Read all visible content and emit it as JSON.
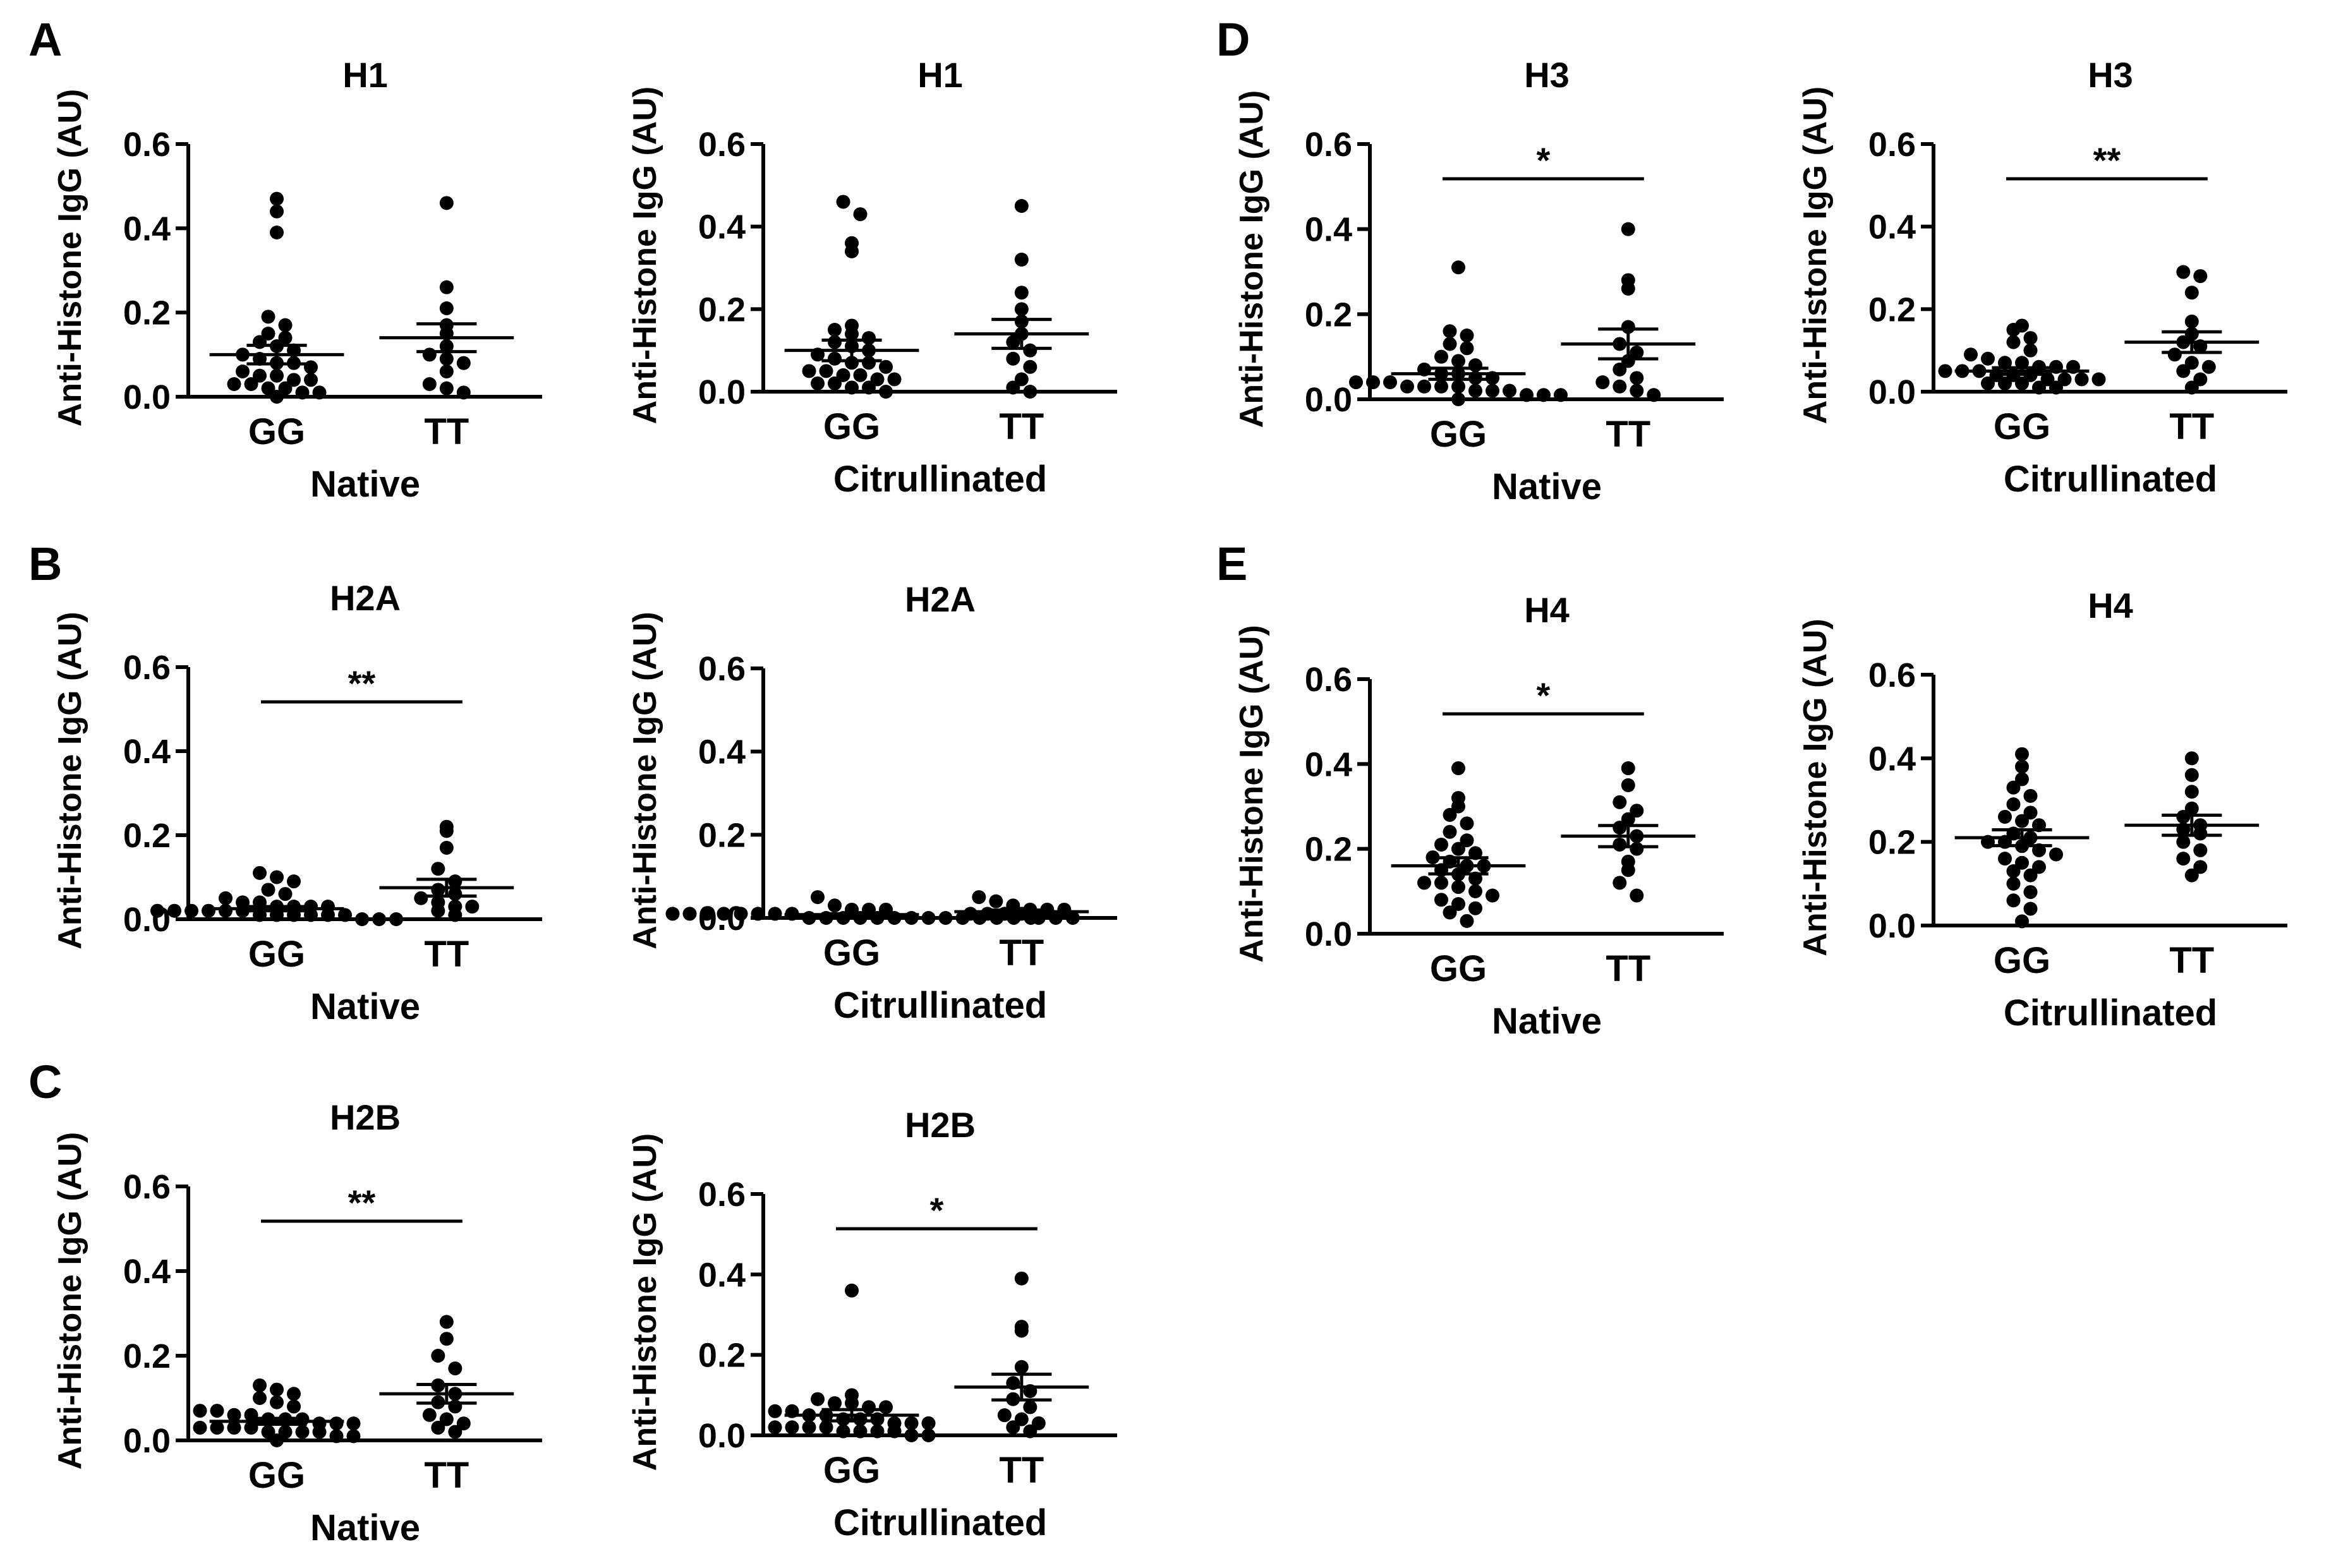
{
  "figure": {
    "panel_letters": [
      "A",
      "B",
      "C",
      "D",
      "E"
    ]
  },
  "chart_data": [
    {
      "type": "scatter",
      "panel": "A",
      "title": "H1",
      "xlabel": "Native",
      "ylabel": "Anti-Histone IgG (AU)",
      "categories": [
        "GG",
        "TT"
      ],
      "ylim": [
        0,
        0.6
      ],
      "yticks": [
        "0.0",
        "0.2",
        "0.4",
        "0.6"
      ],
      "significance": "",
      "groups": [
        {
          "name": "GG",
          "mean": 0.1,
          "sem": 0.022,
          "values": [
            0.47,
            0.44,
            0.39,
            0.19,
            0.17,
            0.15,
            0.14,
            0.13,
            0.12,
            0.11,
            0.1,
            0.09,
            0.08,
            0.08,
            0.07,
            0.06,
            0.05,
            0.05,
            0.04,
            0.04,
            0.03,
            0.03,
            0.02,
            0.02,
            0.01,
            0.01,
            0.0
          ]
        },
        {
          "name": "TT",
          "mean": 0.14,
          "sem": 0.033,
          "values": [
            0.46,
            0.26,
            0.21,
            0.17,
            0.15,
            0.12,
            0.1,
            0.09,
            0.08,
            0.06,
            0.03,
            0.02,
            0.01
          ]
        }
      ]
    },
    {
      "type": "scatter",
      "panel": "A",
      "title": "H1",
      "xlabel": "Citrullinated",
      "ylabel": "Anti-Histone IgG (AU)",
      "categories": [
        "GG",
        "TT"
      ],
      "ylim": [
        0,
        0.6
      ],
      "yticks": [
        "0.0",
        "0.2",
        "0.4",
        "0.6"
      ],
      "significance": "",
      "groups": [
        {
          "name": "GG",
          "mean": 0.1,
          "sem": 0.025,
          "values": [
            0.46,
            0.43,
            0.34,
            0.36,
            0.16,
            0.15,
            0.14,
            0.13,
            0.12,
            0.11,
            0.1,
            0.09,
            0.08,
            0.07,
            0.07,
            0.06,
            0.05,
            0.05,
            0.04,
            0.04,
            0.03,
            0.03,
            0.02,
            0.02,
            0.01,
            0.01,
            0.0
          ]
        },
        {
          "name": "TT",
          "mean": 0.14,
          "sem": 0.035,
          "values": [
            0.45,
            0.32,
            0.24,
            0.2,
            0.17,
            0.14,
            0.12,
            0.1,
            0.08,
            0.06,
            0.03,
            0.01,
            0.0
          ]
        }
      ]
    },
    {
      "type": "scatter",
      "panel": "B",
      "title": "H2A",
      "xlabel": "Native",
      "ylabel": "Anti-Histone IgG (AU)",
      "categories": [
        "GG",
        "TT"
      ],
      "ylim": [
        0,
        0.6
      ],
      "yticks": [
        "0.0",
        "0.2",
        "0.4",
        "0.6"
      ],
      "significance": "**",
      "groups": [
        {
          "name": "GG",
          "mean": 0.025,
          "sem": 0.005,
          "values": [
            0.11,
            0.1,
            0.09,
            0.07,
            0.06,
            0.05,
            0.04,
            0.04,
            0.03,
            0.03,
            0.03,
            0.03,
            0.02,
            0.02,
            0.02,
            0.02,
            0.02,
            0.02,
            0.01,
            0.01,
            0.01,
            0.01,
            0.01,
            0.01,
            0.0,
            0.0,
            0.0
          ]
        },
        {
          "name": "TT",
          "mean": 0.075,
          "sem": 0.02,
          "values": [
            0.22,
            0.21,
            0.17,
            0.12,
            0.09,
            0.07,
            0.06,
            0.05,
            0.04,
            0.03,
            0.03,
            0.02,
            0.01
          ]
        }
      ]
    },
    {
      "type": "scatter",
      "panel": "B",
      "title": "H2A",
      "xlabel": "Citrullinated",
      "ylabel": "Anti-Histone IgG (AU)",
      "categories": [
        "GG",
        "TT"
      ],
      "ylim": [
        0,
        0.6
      ],
      "yticks": [
        "0.0",
        "0.2",
        "0.4",
        "0.6"
      ],
      "significance": "",
      "groups": [
        {
          "name": "GG",
          "mean": 0.008,
          "sem": 0.002,
          "values": [
            0.05,
            0.03,
            0.02,
            0.02,
            0.02,
            0.01,
            0.01,
            0.01,
            0.01,
            0.01,
            0.01,
            0.01,
            0.01,
            0.0,
            0.0,
            0.0,
            0.0,
            0.0,
            0.0,
            0.0,
            0.0,
            0.0,
            0.0,
            0.0,
            0.0,
            0.0,
            0.0
          ]
        },
        {
          "name": "TT",
          "mean": 0.015,
          "sem": 0.004,
          "values": [
            0.05,
            0.04,
            0.03,
            0.02,
            0.02,
            0.02,
            0.01,
            0.01,
            0.01,
            0.01,
            0.0,
            0.0,
            0.0
          ]
        }
      ]
    },
    {
      "type": "scatter",
      "panel": "C",
      "title": "H2B",
      "xlabel": "Native",
      "ylabel": "Anti-Histone IgG (AU)",
      "categories": [
        "GG",
        "TT"
      ],
      "ylim": [
        0,
        0.6
      ],
      "yticks": [
        "0.0",
        "0.2",
        "0.4",
        "0.6"
      ],
      "significance": "**",
      "groups": [
        {
          "name": "GG",
          "mean": 0.045,
          "sem": 0.007,
          "values": [
            0.13,
            0.12,
            0.11,
            0.1,
            0.09,
            0.08,
            0.07,
            0.07,
            0.06,
            0.06,
            0.05,
            0.05,
            0.05,
            0.04,
            0.04,
            0.04,
            0.03,
            0.03,
            0.03,
            0.03,
            0.02,
            0.02,
            0.02,
            0.02,
            0.01,
            0.01,
            0.0
          ]
        },
        {
          "name": "TT",
          "mean": 0.11,
          "sem": 0.022,
          "values": [
            0.28,
            0.24,
            0.2,
            0.17,
            0.13,
            0.11,
            0.09,
            0.08,
            0.06,
            0.05,
            0.04,
            0.03,
            0.02
          ]
        }
      ]
    },
    {
      "type": "scatter",
      "panel": "C",
      "title": "H2B",
      "xlabel": "Citrullinated",
      "ylabel": "Anti-Histone IgG (AU)",
      "categories": [
        "GG",
        "TT"
      ],
      "ylim": [
        0,
        0.6
      ],
      "yticks": [
        "0.0",
        "0.2",
        "0.4",
        "0.6"
      ],
      "significance": "*",
      "groups": [
        {
          "name": "GG",
          "mean": 0.05,
          "sem": 0.014,
          "values": [
            0.36,
            0.1,
            0.09,
            0.08,
            0.08,
            0.07,
            0.07,
            0.06,
            0.06,
            0.05,
            0.05,
            0.04,
            0.04,
            0.04,
            0.03,
            0.03,
            0.03,
            0.02,
            0.02,
            0.02,
            0.02,
            0.01,
            0.01,
            0.01,
            0.01,
            0.0,
            0.0
          ]
        },
        {
          "name": "TT",
          "mean": 0.12,
          "sem": 0.032,
          "values": [
            0.39,
            0.27,
            0.26,
            0.17,
            0.13,
            0.11,
            0.09,
            0.07,
            0.05,
            0.04,
            0.03,
            0.02,
            0.01
          ]
        }
      ]
    },
    {
      "type": "scatter",
      "panel": "D",
      "title": "H3",
      "xlabel": "Native",
      "ylabel": "Anti-Histone IgG (AU)",
      "categories": [
        "GG",
        "TT"
      ],
      "ylim": [
        0,
        0.6
      ],
      "yticks": [
        "0.0",
        "0.2",
        "0.4",
        "0.6"
      ],
      "significance": "*",
      "groups": [
        {
          "name": "GG",
          "mean": 0.06,
          "sem": 0.013,
          "values": [
            0.31,
            0.16,
            0.15,
            0.13,
            0.12,
            0.1,
            0.09,
            0.08,
            0.07,
            0.06,
            0.06,
            0.05,
            0.05,
            0.04,
            0.04,
            0.04,
            0.03,
            0.03,
            0.03,
            0.03,
            0.02,
            0.02,
            0.02,
            0.01,
            0.01,
            0.01,
            0.0
          ]
        },
        {
          "name": "TT",
          "mean": 0.13,
          "sem": 0.035,
          "values": [
            0.4,
            0.28,
            0.26,
            0.17,
            0.13,
            0.11,
            0.09,
            0.07,
            0.05,
            0.04,
            0.03,
            0.02,
            0.01
          ]
        }
      ]
    },
    {
      "type": "scatter",
      "panel": "D",
      "title": "H3",
      "xlabel": "Citrullinated",
      "ylabel": "Anti-Histone IgG (AU)",
      "categories": [
        "GG",
        "TT"
      ],
      "ylim": [
        0,
        0.6
      ],
      "yticks": [
        "0.0",
        "0.2",
        "0.4",
        "0.6"
      ],
      "significance": "**",
      "groups": [
        {
          "name": "GG",
          "mean": 0.05,
          "sem": 0.008,
          "values": [
            0.16,
            0.15,
            0.13,
            0.12,
            0.1,
            0.09,
            0.08,
            0.07,
            0.07,
            0.06,
            0.06,
            0.06,
            0.05,
            0.05,
            0.05,
            0.04,
            0.04,
            0.04,
            0.03,
            0.03,
            0.03,
            0.03,
            0.02,
            0.02,
            0.02,
            0.01,
            0.01
          ]
        },
        {
          "name": "TT",
          "mean": 0.12,
          "sem": 0.025,
          "values": [
            0.29,
            0.28,
            0.24,
            0.17,
            0.14,
            0.12,
            0.11,
            0.09,
            0.07,
            0.06,
            0.05,
            0.03,
            0.01
          ]
        }
      ]
    },
    {
      "type": "scatter",
      "panel": "E",
      "title": "H4",
      "xlabel": "Native",
      "ylabel": "Anti-Histone IgG (AU)",
      "categories": [
        "GG",
        "TT"
      ],
      "ylim": [
        0,
        0.6
      ],
      "yticks": [
        "0.0",
        "0.2",
        "0.4",
        "0.6"
      ],
      "significance": "*",
      "groups": [
        {
          "name": "GG",
          "mean": 0.16,
          "sem": 0.019,
          "values": [
            0.39,
            0.32,
            0.3,
            0.28,
            0.26,
            0.24,
            0.22,
            0.21,
            0.2,
            0.19,
            0.18,
            0.17,
            0.16,
            0.16,
            0.15,
            0.14,
            0.13,
            0.12,
            0.12,
            0.11,
            0.1,
            0.09,
            0.08,
            0.07,
            0.06,
            0.05,
            0.03
          ]
        },
        {
          "name": "TT",
          "mean": 0.23,
          "sem": 0.025,
          "values": [
            0.39,
            0.35,
            0.31,
            0.29,
            0.27,
            0.25,
            0.23,
            0.21,
            0.2,
            0.17,
            0.15,
            0.12,
            0.09
          ]
        }
      ]
    },
    {
      "type": "scatter",
      "panel": "E",
      "title": "H4",
      "xlabel": "Citrullinated",
      "ylabel": "Anti-Histone IgG (AU)",
      "categories": [
        "GG",
        "TT"
      ],
      "ylim": [
        0,
        0.6
      ],
      "yticks": [
        "0.0",
        "0.2",
        "0.4",
        "0.6"
      ],
      "significance": "",
      "groups": [
        {
          "name": "GG",
          "mean": 0.21,
          "sem": 0.019,
          "values": [
            0.41,
            0.38,
            0.35,
            0.33,
            0.31,
            0.29,
            0.27,
            0.26,
            0.25,
            0.24,
            0.22,
            0.21,
            0.2,
            0.2,
            0.19,
            0.18,
            0.17,
            0.16,
            0.15,
            0.14,
            0.13,
            0.12,
            0.1,
            0.08,
            0.06,
            0.04,
            0.01
          ]
        },
        {
          "name": "TT",
          "mean": 0.24,
          "sem": 0.024,
          "values": [
            0.4,
            0.36,
            0.32,
            0.28,
            0.26,
            0.24,
            0.23,
            0.22,
            0.2,
            0.18,
            0.16,
            0.14,
            0.12
          ]
        }
      ]
    }
  ]
}
